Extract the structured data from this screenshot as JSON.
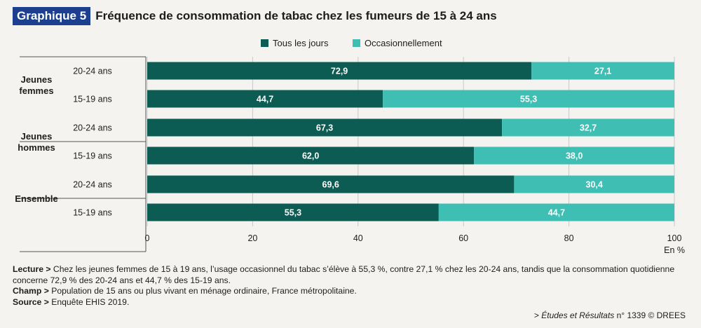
{
  "header": {
    "badge": "Graphique 5",
    "title": "Fréquence de consommation de tabac chez les fumeurs de 15 à 24 ans"
  },
  "chart_data": {
    "type": "bar",
    "orientation": "horizontal",
    "stacked": true,
    "groups": [
      {
        "label": "Jeunes femmes",
        "rows": [
          "20-24 ans",
          "15-19 ans"
        ]
      },
      {
        "label": "Jeunes hommes",
        "rows": [
          "20-24 ans",
          "15-19 ans"
        ]
      },
      {
        "label": "Ensemble",
        "rows": [
          "20-24 ans",
          "15-19 ans"
        ]
      }
    ],
    "categories": [
      "Jeunes femmes 20-24 ans",
      "Jeunes femmes 15-19 ans",
      "Jeunes hommes 20-24 ans",
      "Jeunes hommes 15-19 ans",
      "Ensemble 20-24 ans",
      "Ensemble 15-19 ans"
    ],
    "series": [
      {
        "name": "Tous les jours",
        "color": "#0d5c53",
        "values": [
          72.9,
          44.7,
          67.3,
          62.0,
          69.6,
          55.3
        ],
        "labels": [
          "72,9",
          "44,7",
          "67,3",
          "62,0",
          "69,6",
          "55,3"
        ]
      },
      {
        "name": "Occasionnellement",
        "color": "#3fbfb4",
        "values": [
          27.1,
          55.3,
          32.7,
          38.0,
          30.4,
          44.7
        ],
        "labels": [
          "27,1",
          "55,3",
          "32,7",
          "38,0",
          "30,4",
          "44,7"
        ]
      }
    ],
    "xlim": [
      0,
      100
    ],
    "xticks": [
      0,
      20,
      40,
      60,
      80,
      100
    ],
    "xunit": "En %",
    "grid": true,
    "legend": "top-center"
  },
  "notes": {
    "lecture_label": "Lecture >",
    "lecture_text": "Chez les jeunes femmes de 15 à 19 ans, l’usage occasionnel du tabac s’élève à 55,3 %, contre 27,1 % chez les 20-24 ans, tandis que la consommation quotidienne concerne 72,9 % des 20-24 ans et 44,7 % des 15-19 ans.",
    "champ_label": "Champ >",
    "champ_text": "Population de 15 ans ou plus vivant en ménage ordinaire, France métropolitaine.",
    "source_label": "Source >",
    "source_text": "Enquête EHIS 2019."
  },
  "credit": {
    "prefix": "> ",
    "publication": "Études et Résultats",
    "rest": " n° 1339 © DREES"
  }
}
